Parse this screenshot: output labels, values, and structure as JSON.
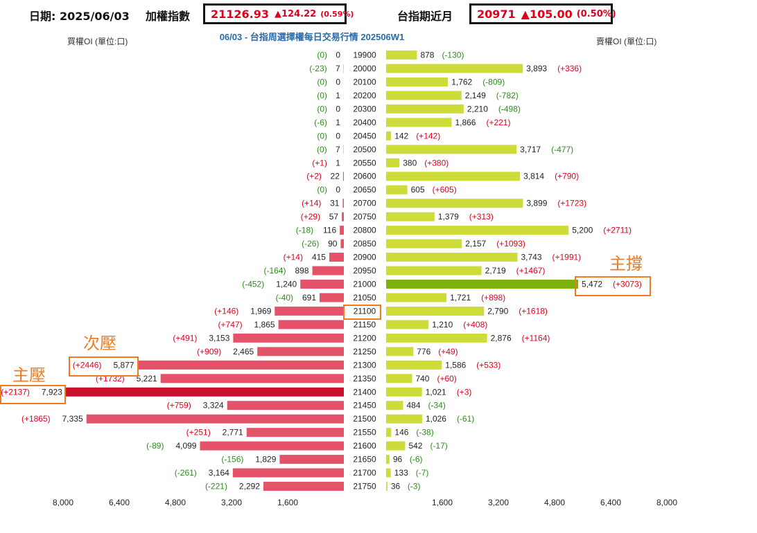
{
  "header": {
    "date_label": "日期:",
    "date_value": "2025/06/03",
    "index_label": "加權指數",
    "index_price": "21126.93",
    "index_change": "▲124.22",
    "index_pct": "(0.59%)",
    "futures_label": "台指期近月",
    "futures_price": "20971",
    "futures_change": "▲105.00",
    "futures_pct": "(0.50%)"
  },
  "annotations": {
    "support": "主撐",
    "secondary_pressure": "次壓",
    "main_pressure": "主壓"
  },
  "colors": {
    "call_bar": "#e4536a",
    "call_bar_max": "#c8102e",
    "put_bar": "#cddc39",
    "put_bar_max": "#7cb30b",
    "positive_change": "#e0001b",
    "negative_change": "#2e8b1e",
    "title": "#2a6aa8",
    "highlight": "#f07b1f"
  },
  "chart_data": {
    "type": "bar",
    "title": "06/03 - 台指周選擇權每日交易行情 202506W1",
    "left_label": "買權OI (單位:口)",
    "right_label": "賣權OI (單位:口)",
    "xlim": [
      0,
      8000
    ],
    "x_ticks": [
      "8,000",
      "6,400",
      "4,800",
      "3,200",
      "1,600",
      "1,600",
      "3,200",
      "4,800",
      "6,400",
      "8,000"
    ],
    "x_tick_values": [
      8000,
      6400,
      4800,
      3200,
      1600,
      1600,
      3200,
      4800,
      6400,
      8000
    ],
    "strikes": [
      "19900",
      "20000",
      "20100",
      "20200",
      "20300",
      "20400",
      "20450",
      "20500",
      "20550",
      "20600",
      "20650",
      "20700",
      "20750",
      "20800",
      "20850",
      "20900",
      "20950",
      "21000",
      "21050",
      "21100",
      "21150",
      "21200",
      "21250",
      "21300",
      "21350",
      "21400",
      "21450",
      "21500",
      "21550",
      "21600",
      "21650",
      "21700",
      "21750"
    ],
    "series": [
      {
        "name": "買權OI",
        "values": [
          0,
          7,
          0,
          1,
          0,
          1,
          0,
          7,
          1,
          22,
          0,
          31,
          57,
          116,
          90,
          415,
          898,
          1240,
          691,
          1969,
          1865,
          3153,
          2465,
          5877,
          5221,
          7923,
          3324,
          7335,
          2771,
          4099,
          1829,
          3164,
          2292
        ],
        "labels": [
          "0",
          "7",
          "0",
          "1",
          "0",
          "1",
          "0",
          "7",
          "1",
          "22",
          "0",
          "31",
          "57",
          "116",
          "90",
          "415",
          "898",
          "1,240",
          "691",
          "1,969",
          "1,865",
          "3,153",
          "2,465",
          "5,877",
          "5,221",
          "7,923",
          "3,324",
          "7,335",
          "2,771",
          "4,099",
          "1,829",
          "3,164",
          "2,292"
        ],
        "changes": [
          "(0)",
          "(-23)",
          "(0)",
          "(0)",
          "(0)",
          "(-6)",
          "(0)",
          "(0)",
          "(+1)",
          "(+2)",
          "(0)",
          "(+14)",
          "(+29)",
          "(-18)",
          "(-26)",
          "(+14)",
          "(-164)",
          "(-452)",
          "(-40)",
          "(+146)",
          "(+747)",
          "(+491)",
          "(+909)",
          "(+2446)",
          "(+1732)",
          "(+2137)",
          "(+759)",
          "(+1865)",
          "(+251)",
          "(-89)",
          "(-156)",
          "(-261)",
          "(-221)"
        ]
      },
      {
        "name": "賣權OI",
        "values": [
          878,
          3893,
          1762,
          2149,
          2210,
          1866,
          142,
          3717,
          380,
          3814,
          605,
          3899,
          1379,
          5200,
          2157,
          3743,
          2719,
          5472,
          1721,
          2790,
          1210,
          2876,
          776,
          1586,
          740,
          1021,
          484,
          1026,
          146,
          542,
          96,
          133,
          36
        ],
        "labels": [
          "878",
          "3,893",
          "1,762",
          "2,149",
          "2,210",
          "1,866",
          "142",
          "3,717",
          "380",
          "3,814",
          "605",
          "3,899",
          "1,379",
          "5,200",
          "2,157",
          "3,743",
          "2,719",
          "5,472",
          "1,721",
          "2,790",
          "1,210",
          "2,876",
          "776",
          "1,586",
          "740",
          "1,021",
          "484",
          "1,026",
          "146",
          "542",
          "96",
          "133",
          "36"
        ],
        "changes": [
          "(-130)",
          "(+336)",
          "(-809)",
          "(-782)",
          "(-498)",
          "(+221)",
          "(+142)",
          "(-477)",
          "(+380)",
          "(+790)",
          "(+605)",
          "(+1723)",
          "(+313)",
          "(+2711)",
          "(+1093)",
          "(+1991)",
          "(+1467)",
          "(+3073)",
          "(+898)",
          "(+1618)",
          "(+408)",
          "(+1164)",
          "(+49)",
          "(+533)",
          "(+60)",
          "(+3)",
          "(-34)",
          "(-61)",
          "(-38)",
          "(-17)",
          "(-6)",
          "(-7)",
          "(-3)"
        ]
      }
    ]
  }
}
